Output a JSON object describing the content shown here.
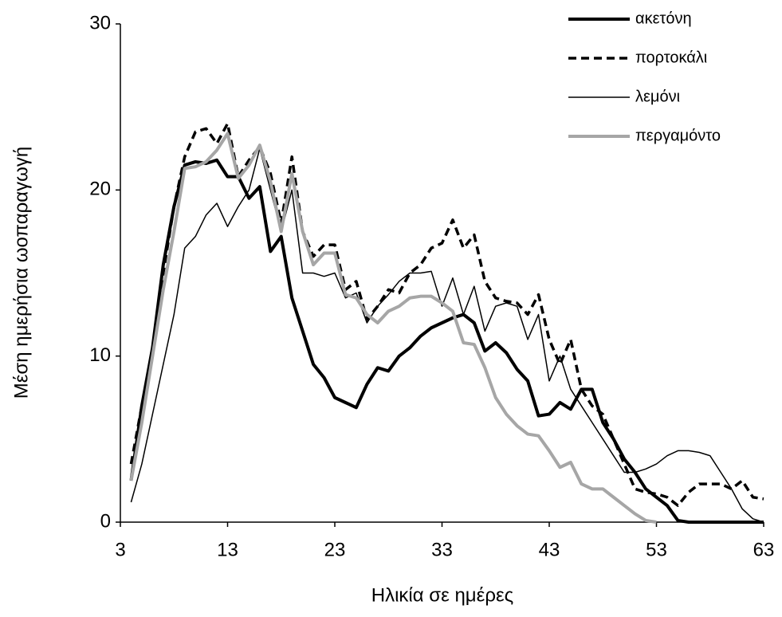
{
  "chart_data": {
    "type": "line",
    "x_label": "Ηλικία σε ημέρες",
    "y_label": "Μέση ημερήσια ωοπαραγωγή",
    "x": [
      4,
      5,
      6,
      7,
      8,
      9,
      10,
      11,
      12,
      13,
      14,
      15,
      16,
      17,
      18,
      19,
      20,
      21,
      22,
      23,
      24,
      25,
      26,
      27,
      28,
      29,
      30,
      31,
      32,
      33,
      34,
      35,
      36,
      37,
      38,
      39,
      40,
      41,
      42,
      43,
      44,
      45,
      46,
      47,
      48,
      49,
      50,
      51,
      52,
      53,
      54,
      55,
      56,
      57,
      58,
      59,
      60,
      61,
      62,
      63
    ],
    "series": [
      {
        "name": "ακετόνη",
        "color": "#000000",
        "line_width": 4,
        "dashed": false,
        "values": [
          2.5,
          7,
          10.5,
          15.5,
          19,
          21.5,
          21.7,
          21.6,
          21.8,
          20.8,
          20.8,
          19.5,
          20.2,
          16.3,
          17.2,
          13.5,
          11.5,
          9.5,
          8.7,
          7.5,
          7.2,
          6.9,
          8.3,
          9.3,
          9.1,
          10,
          10.5,
          11.2,
          11.7,
          12,
          12.3,
          12.5,
          12,
          10.3,
          10.8,
          10.2,
          9.2,
          8.5,
          6.4,
          6.5,
          7.2,
          6.8,
          8,
          8,
          6,
          5,
          3.8,
          3,
          2,
          1.5,
          1,
          0.1,
          0,
          0,
          0,
          0,
          0,
          0,
          0,
          0
        ]
      },
      {
        "name": "πορτοκάλι",
        "color": "#000000",
        "line_width": 3.5,
        "dashed": true,
        "values": [
          3.5,
          7,
          10,
          15,
          19,
          22,
          23.5,
          23.7,
          22.8,
          24,
          20.8,
          21.8,
          22.6,
          21,
          18,
          22,
          17.5,
          16,
          16.7,
          16.7,
          14,
          14.5,
          12.2,
          13,
          14,
          13.8,
          15,
          15.5,
          16.5,
          16.8,
          18.2,
          16.5,
          17.3,
          14.5,
          13.5,
          13.3,
          13.2,
          12.5,
          13.7,
          11,
          9.5,
          11,
          8,
          7,
          6.5,
          5,
          3.5,
          2,
          1.8,
          1.7,
          1.5,
          1,
          1.8,
          2.3,
          2.3,
          2.3,
          2,
          2.5,
          1.5,
          1.4
        ]
      },
      {
        "name": "λεμόνι",
        "color": "#000000",
        "line_width": 1.5,
        "dashed": false,
        "values": [
          1.2,
          3.5,
          6.5,
          9.5,
          12.5,
          16.5,
          17.2,
          18.5,
          19.2,
          17.8,
          19,
          20,
          22.5,
          20,
          17.5,
          20,
          15,
          15,
          14.8,
          15,
          13.5,
          13.8,
          12,
          13,
          13.7,
          14.5,
          15,
          15,
          15.1,
          13,
          14.7,
          12.5,
          14.2,
          11.5,
          13,
          13.2,
          13,
          11,
          12.5,
          8.5,
          10,
          8,
          7,
          6,
          5,
          4,
          3,
          3,
          3.2,
          3.5,
          4,
          4.3,
          4.3,
          4.2,
          4,
          3,
          2,
          0.8,
          0.2,
          0
        ]
      },
      {
        "name": "περγαμόντο",
        "color": "#a6a6a6",
        "line_width": 4,
        "dashed": false,
        "values": [
          2.5,
          6,
          10,
          14,
          17.5,
          21.3,
          21.4,
          21.7,
          22.4,
          23.4,
          20.7,
          21.5,
          22.7,
          20.5,
          17.5,
          21,
          17.5,
          15.5,
          16.2,
          16.2,
          13.7,
          13.5,
          12.5,
          12,
          12.7,
          13,
          13.5,
          13.6,
          13.6,
          13.2,
          12.7,
          10.8,
          10.7,
          9.3,
          7.5,
          6.5,
          5.8,
          5.3,
          5.2,
          4.3,
          3.3,
          3.6,
          2.3,
          2,
          2,
          1.5,
          1,
          0.5,
          0.1,
          0,
          null,
          null,
          null,
          null,
          null,
          null,
          null,
          null,
          null,
          null
        ]
      }
    ],
    "xlim": [
      3,
      63
    ],
    "xticks": [
      3,
      13,
      23,
      33,
      43,
      53,
      63
    ],
    "ylim": [
      0,
      30
    ],
    "yticks": [
      0,
      10,
      20,
      30
    ],
    "legend": "top-right"
  }
}
